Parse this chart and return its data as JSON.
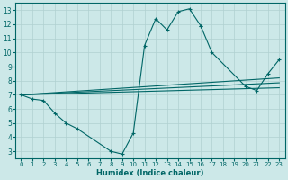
{
  "xlabel": "Humidex (Indice chaleur)",
  "bg_color": "#cce8e8",
  "grid_color": "#b0d0d0",
  "line_color": "#006666",
  "xlim": [
    -0.5,
    23.5
  ],
  "ylim": [
    2.5,
    13.5
  ],
  "xticks": [
    0,
    1,
    2,
    3,
    4,
    5,
    6,
    7,
    8,
    9,
    10,
    11,
    12,
    13,
    14,
    15,
    16,
    17,
    18,
    19,
    20,
    21,
    22,
    23
  ],
  "yticks": [
    3,
    4,
    5,
    6,
    7,
    8,
    9,
    10,
    11,
    12,
    13
  ],
  "curve1_x": [
    0,
    1,
    2,
    3,
    4,
    5,
    8,
    9,
    10,
    11,
    12,
    13,
    14,
    15,
    16
  ],
  "curve1_y": [
    7.0,
    6.7,
    6.6,
    5.7,
    5.0,
    4.6,
    3.0,
    2.8,
    4.3,
    10.5,
    12.4,
    11.6,
    12.9,
    13.1,
    11.9
  ],
  "curve2_x": [
    16,
    17,
    20,
    21,
    22,
    23
  ],
  "curve2_y": [
    11.9,
    10.0,
    7.6,
    7.3,
    8.5,
    9.5
  ],
  "fan_lines": [
    {
      "x": [
        0,
        23
      ],
      "y": [
        7.0,
        7.5
      ]
    },
    {
      "x": [
        0,
        23
      ],
      "y": [
        7.0,
        7.85
      ]
    },
    {
      "x": [
        0,
        23
      ],
      "y": [
        7.0,
        8.2
      ]
    }
  ]
}
